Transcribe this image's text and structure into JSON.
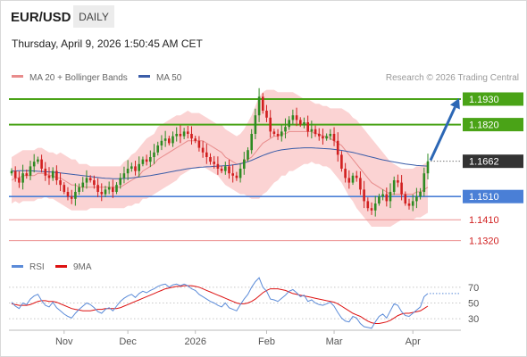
{
  "header": {
    "symbol": "EUR/USD",
    "timeframe": "DAILY",
    "datetime": "Thursday, April 9, 2026 1:50:45 AM CET"
  },
  "legend": {
    "ma20": "MA 20 + Bollinger Bands",
    "ma50": "MA 50",
    "credit": "Research © 2026 Trading Central",
    "rsi": "RSI",
    "rsi_ma": "9MA"
  },
  "colors": {
    "candle_up": "#2e8b22",
    "candle_down": "#d11f1f",
    "bollinger_fill": "#fbd3d3",
    "ma20": "#e88c8c",
    "ma50": "#3b5da8",
    "resistance": "#4aa317",
    "support": "#4a7fd6",
    "target_line": "#ec8f8f",
    "current": "#333333",
    "arrow": "#2c67b5",
    "rsi_line": "#5b8bd8",
    "rsi_ma": "#dd1111",
    "target_text": "#d11f1f"
  },
  "chart_data": [
    {
      "type": "candlestick",
      "title": "EUR/USD",
      "timeframe": "Daily",
      "x_labels": [
        "Nov",
        "Dec",
        "2026",
        "Feb",
        "Mar",
        "Apr"
      ],
      "ylim": [
        1.128,
        1.198
      ],
      "levels": [
        {
          "name": "resistance-2",
          "value": 1.193,
          "label": "1.1930",
          "style": "resistance"
        },
        {
          "name": "resistance-1",
          "value": 1.182,
          "label": "1.1820",
          "style": "resistance"
        },
        {
          "name": "last-price",
          "value": 1.1662,
          "label": "1.1662",
          "style": "current"
        },
        {
          "name": "pivot",
          "value": 1.151,
          "label": "1.1510",
          "style": "support"
        },
        {
          "name": "target-1",
          "value": 1.141,
          "label": "1.1410",
          "style": "target"
        },
        {
          "name": "target-2",
          "value": 1.132,
          "label": "1.1320",
          "style": "target"
        }
      ],
      "last_price": 1.1662,
      "bias": "bullish, toward 1.1930",
      "closes": [
        1.162,
        1.159,
        1.157,
        1.161,
        1.16,
        1.164,
        1.166,
        1.167,
        1.163,
        1.16,
        1.159,
        1.162,
        1.158,
        1.156,
        1.153,
        1.151,
        1.15,
        1.153,
        1.155,
        1.157,
        1.159,
        1.158,
        1.156,
        1.153,
        1.152,
        1.154,
        1.155,
        1.153,
        1.156,
        1.159,
        1.161,
        1.163,
        1.164,
        1.162,
        1.165,
        1.167,
        1.166,
        1.168,
        1.17,
        1.173,
        1.175,
        1.176,
        1.174,
        1.177,
        1.178,
        1.177,
        1.179,
        1.178,
        1.176,
        1.175,
        1.172,
        1.17,
        1.168,
        1.166,
        1.165,
        1.163,
        1.162,
        1.164,
        1.161,
        1.16,
        1.159,
        1.163,
        1.167,
        1.171,
        1.178,
        1.186,
        1.194,
        1.188,
        1.185,
        1.179,
        1.178,
        1.177,
        1.179,
        1.181,
        1.184,
        1.186,
        1.184,
        1.182,
        1.183,
        1.179,
        1.18,
        1.178,
        1.177,
        1.176,
        1.177,
        1.178,
        1.175,
        1.169,
        1.163,
        1.159,
        1.157,
        1.16,
        1.159,
        1.154,
        1.149,
        1.146,
        1.145,
        1.148,
        1.151,
        1.152,
        1.149,
        1.153,
        1.158,
        1.157,
        1.152,
        1.148,
        1.147,
        1.149,
        1.151,
        1.153,
        1.161,
        1.1662
      ],
      "ma20": [
        1.158,
        1.159,
        1.159,
        1.16,
        1.16,
        1.16,
        1.16,
        1.161,
        1.161,
        1.161,
        1.16,
        1.16,
        1.159,
        1.159,
        1.158,
        1.157,
        1.156,
        1.156,
        1.155,
        1.155,
        1.155,
        1.155,
        1.155,
        1.155,
        1.155,
        1.155,
        1.155,
        1.155,
        1.155,
        1.155,
        1.156,
        1.157,
        1.158,
        1.159,
        1.16,
        1.162,
        1.163,
        1.164,
        1.165,
        1.167,
        1.168,
        1.169,
        1.17,
        1.171,
        1.172,
        1.173,
        1.174,
        1.175,
        1.175,
        1.175,
        1.175,
        1.175,
        1.174,
        1.173,
        1.172,
        1.171,
        1.17,
        1.168,
        1.167,
        1.166,
        1.165,
        1.165,
        1.166,
        1.167,
        1.168,
        1.17,
        1.172,
        1.174,
        1.175,
        1.176,
        1.177,
        1.177,
        1.178,
        1.178,
        1.179,
        1.179,
        1.179,
        1.179,
        1.179,
        1.179,
        1.179,
        1.178,
        1.178,
        1.177,
        1.177,
        1.176,
        1.175,
        1.174,
        1.173,
        1.171,
        1.169,
        1.167,
        1.165,
        1.163,
        1.161,
        1.159,
        1.157,
        1.156,
        1.155,
        1.154,
        1.153,
        1.152,
        1.152,
        1.152,
        1.152,
        1.152,
        1.152,
        1.152,
        1.153,
        1.153,
        1.154,
        1.155
      ],
      "bollinger_width": [
        0.01,
        0.01,
        0.011,
        0.011,
        0.011,
        0.011,
        0.011,
        0.011,
        0.011,
        0.01,
        0.01,
        0.01,
        0.01,
        0.011,
        0.011,
        0.011,
        0.011,
        0.011,
        0.01,
        0.01,
        0.01,
        0.009,
        0.009,
        0.009,
        0.009,
        0.009,
        0.009,
        0.009,
        0.009,
        0.009,
        0.01,
        0.01,
        0.011,
        0.011,
        0.012,
        0.012,
        0.013,
        0.013,
        0.013,
        0.014,
        0.014,
        0.014,
        0.014,
        0.014,
        0.014,
        0.013,
        0.013,
        0.013,
        0.012,
        0.012,
        0.012,
        0.011,
        0.011,
        0.011,
        0.011,
        0.011,
        0.012,
        0.012,
        0.012,
        0.012,
        0.012,
        0.013,
        0.014,
        0.016,
        0.018,
        0.02,
        0.022,
        0.022,
        0.022,
        0.021,
        0.02,
        0.019,
        0.018,
        0.018,
        0.017,
        0.017,
        0.016,
        0.015,
        0.014,
        0.014,
        0.013,
        0.013,
        0.013,
        0.013,
        0.013,
        0.013,
        0.014,
        0.015,
        0.016,
        0.017,
        0.018,
        0.018,
        0.019,
        0.019,
        0.019,
        0.019,
        0.019,
        0.018,
        0.017,
        0.016,
        0.015,
        0.014,
        0.013,
        0.012,
        0.011,
        0.011,
        0.011,
        0.011,
        0.011,
        0.011,
        0.011,
        0.011
      ],
      "ma50": [
        1.162,
        1.162,
        1.1621,
        1.1621,
        1.1621,
        1.1621,
        1.162,
        1.1619,
        1.1618,
        1.1617,
        1.1616,
        1.1615,
        1.1614,
        1.1612,
        1.161,
        1.1608,
        1.1606,
        1.1604,
        1.1602,
        1.16,
        1.1598,
        1.1596,
        1.1594,
        1.1592,
        1.159,
        1.1589,
        1.1588,
        1.1587,
        1.1587,
        1.1587,
        1.1588,
        1.1589,
        1.159,
        1.1592,
        1.1594,
        1.1596,
        1.1598,
        1.16,
        1.1603,
        1.1606,
        1.1609,
        1.1612,
        1.1615,
        1.1618,
        1.1621,
        1.1624,
        1.1627,
        1.163,
        1.1632,
        1.1634,
        1.1636,
        1.1637,
        1.1638,
        1.1639,
        1.164,
        1.1641,
        1.1642,
        1.1643,
        1.1644,
        1.1646,
        1.1648,
        1.1651,
        1.1655,
        1.166,
        1.1666,
        1.1673,
        1.168,
        1.1687,
        1.1693,
        1.1699,
        1.1704,
        1.1708,
        1.1711,
        1.1713,
        1.1715,
        1.1717,
        1.1718,
        1.1719,
        1.172,
        1.172,
        1.172,
        1.1719,
        1.1718,
        1.1717,
        1.1716,
        1.1715,
        1.1713,
        1.1711,
        1.1709,
        1.1706,
        1.1703,
        1.17,
        1.1696,
        1.1692,
        1.1688,
        1.1684,
        1.168,
        1.1676,
        1.1672,
        1.1668,
        1.1665,
        1.1662,
        1.1659,
        1.1656,
        1.1653,
        1.165,
        1.1648,
        1.1646,
        1.1644,
        1.1643,
        1.1642,
        1.1641
      ]
    },
    {
      "type": "line",
      "title": "RSI",
      "ticks": [
        70,
        50,
        30
      ],
      "ylim": [
        20,
        80
      ],
      "series": [
        {
          "name": "RSI",
          "values": [
            51,
            46,
            43,
            50,
            48,
            55,
            59,
            61,
            53,
            47,
            45,
            51,
            44,
            40,
            36,
            33,
            31,
            37,
            42,
            46,
            50,
            48,
            44,
            39,
            37,
            42,
            44,
            40,
            46,
            52,
            56,
            59,
            61,
            57,
            62,
            65,
            63,
            66,
            68,
            71,
            73,
            74,
            70,
            73,
            74,
            72,
            74,
            72,
            68,
            66,
            61,
            58,
            55,
            52,
            50,
            47,
            45,
            50,
            44,
            42,
            40,
            48,
            55,
            61,
            70,
            77,
            82,
            70,
            65,
            55,
            54,
            52,
            56,
            60,
            65,
            67,
            63,
            58,
            60,
            52,
            54,
            50,
            48,
            47,
            49,
            51,
            46,
            38,
            31,
            27,
            26,
            33,
            31,
            24,
            20,
            19,
            18,
            26,
            33,
            36,
            31,
            40,
            49,
            47,
            39,
            34,
            33,
            37,
            41,
            45,
            58,
            62
          ]
        },
        {
          "name": "9MA",
          "values": [
            49,
            48,
            47,
            47,
            47,
            48,
            50,
            52,
            53,
            53,
            52,
            52,
            51,
            49,
            47,
            45,
            43,
            42,
            41,
            40,
            40,
            40,
            41,
            42,
            42,
            43,
            43,
            43,
            43,
            44,
            46,
            48,
            50,
            52,
            54,
            56,
            58,
            60,
            62,
            64,
            66,
            68,
            69,
            70,
            71,
            71,
            72,
            72,
            72,
            71,
            70,
            68,
            66,
            64,
            62,
            60,
            58,
            56,
            54,
            52,
            50,
            49,
            49,
            50,
            52,
            55,
            59,
            63,
            66,
            68,
            68,
            68,
            67,
            66,
            64,
            62,
            61,
            60,
            59,
            58,
            57,
            56,
            55,
            54,
            53,
            52,
            51,
            49,
            46,
            43,
            40,
            37,
            35,
            33,
            30,
            27,
            25,
            24,
            24,
            25,
            26,
            28,
            31,
            34,
            36,
            37,
            37,
            38,
            39,
            40,
            43,
            46
          ]
        }
      ]
    }
  ]
}
